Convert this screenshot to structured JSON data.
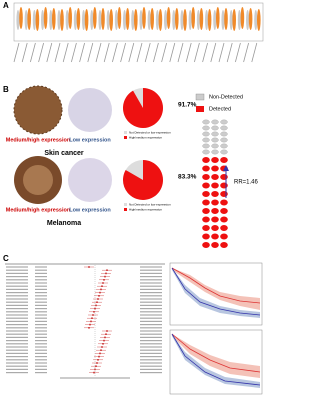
{
  "panels": {
    "a": "A",
    "b": "B",
    "c": "C"
  },
  "tissue": [
    {
      "name": "Skin cancer",
      "high_label": "Medium/high expression",
      "low_label": "Low expression",
      "pie": {
        "value": 91.7,
        "value_label": "91.7%"
      }
    },
    {
      "name": "Melanoma",
      "high_label": "Medium/high expression",
      "low_label": "Low expression",
      "pie": {
        "value": 83.3,
        "value_label": "83.3%"
      }
    }
  ],
  "pie_legend": [
    "Not Detected or low expression",
    "High/medium expression"
  ],
  "detect_legend": [
    "Non-Detected",
    "Detected"
  ],
  "rr": "RR=1.46"
}
